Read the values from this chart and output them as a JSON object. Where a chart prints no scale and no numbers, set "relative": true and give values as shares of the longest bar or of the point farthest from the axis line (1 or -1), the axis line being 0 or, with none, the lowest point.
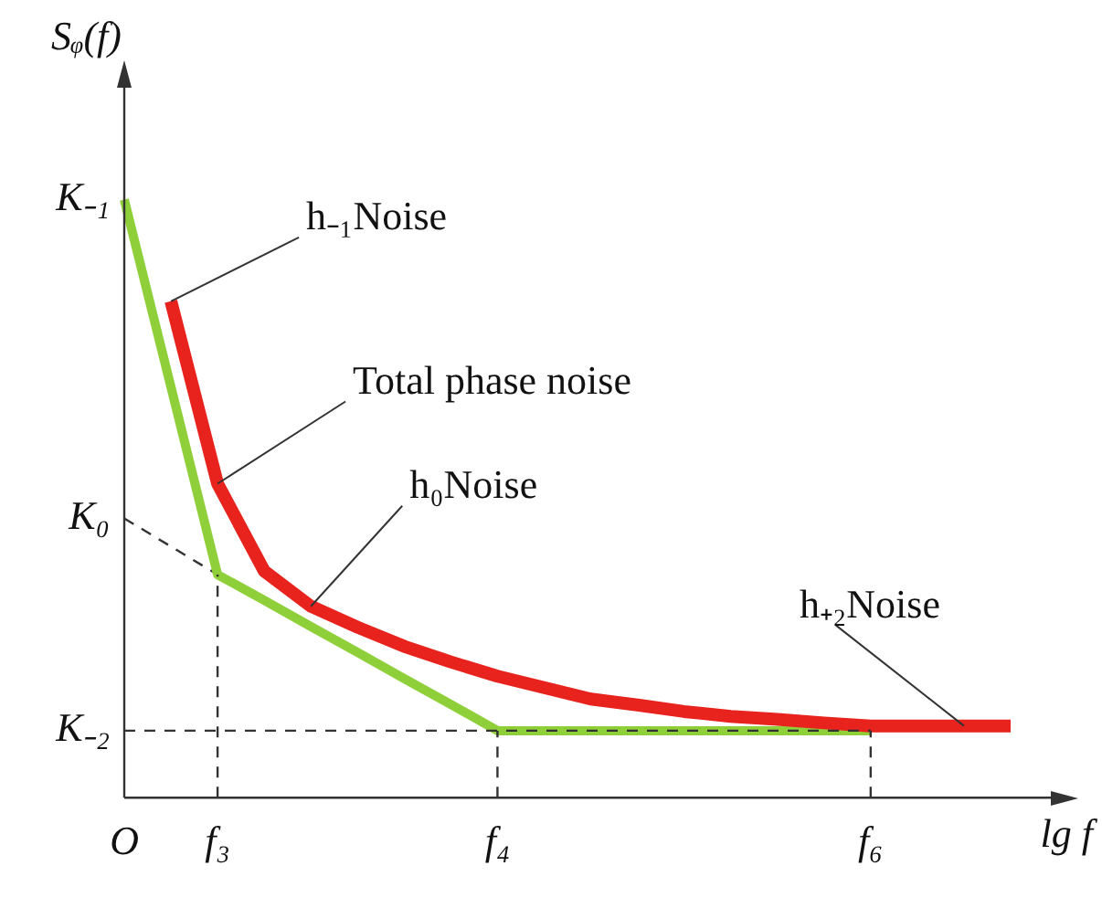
{
  "chart_data": {
    "type": "line",
    "relative": true,
    "xlabel": "lg f",
    "ylabel": "Sᵩ(f)",
    "grid": false,
    "legend": false,
    "marker": "none",
    "categories": [
      "O",
      null,
      "f₃",
      null,
      null,
      null,
      null,
      null,
      "f₄",
      null,
      null,
      null,
      null,
      null,
      null,
      null,
      "f₆",
      null,
      null,
      null
    ],
    "series": [
      {
        "color": "#e8221c",
        "values": [
          null,
          0.83,
          0.525,
          0.379,
          0.32,
          0.285,
          0.253,
          0.227,
          0.203,
          0.184,
          0.165,
          0.155,
          0.144,
          0.136,
          0.131,
          0.125,
          0.12,
          0.12,
          0.12,
          0.12
        ]
      },
      {
        "color": "#8fd03a",
        "values": [
          1,
          0.687,
          0.373,
          0.33,
          0.286,
          0.243,
          0.199,
          0.156,
          0.112,
          0.112,
          0.112,
          0.112,
          0.112,
          0.112,
          0.112,
          0.112,
          0.112,
          null,
          null,
          null
        ]
      },
      {
        "color": "#333333",
        "line_style": "dashed",
        "values": [
          0.467,
          0.42,
          0.373,
          null,
          null,
          null,
          null,
          null,
          null,
          null,
          null,
          null,
          null,
          null,
          null,
          null,
          null,
          null,
          null,
          null
        ]
      }
    ],
    "ref_lines": [
      {
        "axis": "y",
        "value": 0.112,
        "label": "K₋₂",
        "color": "#333333",
        "line_style": "dashed"
      },
      {
        "axis": "x",
        "value": "f₃",
        "color": "#333333",
        "line_style": "dashed"
      },
      {
        "axis": "x",
        "value": "f₄",
        "color": "#333333",
        "line_style": "dashed"
      },
      {
        "axis": "x",
        "value": "f₆",
        "color": "#333333",
        "line_style": "dashed"
      }
    ],
    "annotations": [
      "K₋₁",
      "K₀",
      "h₋₁Noise",
      "Total phase noise",
      "h₀Noise",
      "h₊₂Noise"
    ]
  }
}
